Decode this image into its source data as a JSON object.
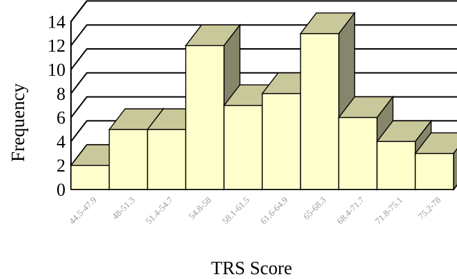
{
  "chart_data": {
    "type": "bar",
    "style": "3d-column",
    "xlabel": "TRS Score",
    "ylabel": "Frequency",
    "categories": [
      "44.5-47.9",
      "48-51.3",
      "51.4-54.7",
      "54.8-58",
      "58.1-61.5",
      "61.6-64.9",
      "65-68.3",
      "68.4-71.7",
      "71.8-75.1",
      "75.2-78"
    ],
    "values": [
      2,
      5,
      5,
      12,
      7,
      8,
      13,
      6,
      4,
      3
    ],
    "yticks": [
      0,
      2,
      4,
      6,
      8,
      10,
      12,
      14
    ],
    "ylim": [
      0,
      14
    ],
    "grid": true,
    "legend": "none",
    "colors": {
      "bar_front": "#FFFFCC",
      "bar_top": "#C8C89A",
      "bar_side": "#86866A",
      "tick_label": "#999999"
    }
  }
}
